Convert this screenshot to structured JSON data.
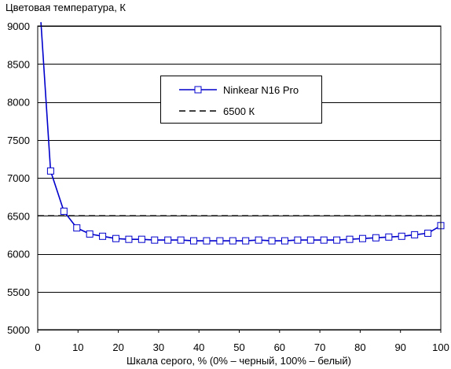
{
  "chart_data": {
    "type": "line",
    "ylabel": "Цветовая температура, К",
    "xlabel": "Шкала серого, % (0% – черный, 100% – белый)",
    "xlim": [
      0,
      100
    ],
    "ylim": [
      5000,
      9000
    ],
    "xticks": [
      0,
      10,
      20,
      30,
      40,
      50,
      60,
      70,
      80,
      90,
      100
    ],
    "yticks": [
      5000,
      5500,
      6000,
      6500,
      7000,
      7500,
      8000,
      8500,
      9000
    ],
    "grid": "horizontal",
    "legend_position": "top-center",
    "series": [
      {
        "name": "Ninkear N16 Pro",
        "color": "#0000cc",
        "marker": "open-square",
        "x": [
          3.2,
          6.5,
          9.7,
          12.9,
          16.1,
          19.4,
          22.6,
          25.8,
          29.0,
          32.3,
          35.5,
          38.7,
          41.9,
          45.2,
          48.4,
          51.6,
          54.8,
          58.1,
          61.3,
          64.5,
          67.7,
          71.0,
          74.2,
          77.4,
          80.6,
          83.9,
          87.1,
          90.3,
          93.5,
          96.8,
          100.0
        ],
        "y": [
          7090,
          6560,
          6340,
          6260,
          6230,
          6200,
          6190,
          6190,
          6180,
          6180,
          6180,
          6170,
          6170,
          6170,
          6170,
          6170,
          6180,
          6170,
          6170,
          6180,
          6180,
          6180,
          6180,
          6190,
          6200,
          6210,
          6220,
          6230,
          6250,
          6270,
          6370
        ],
        "line_start": [
          0.8,
          9050
        ]
      },
      {
        "name": "6500 К",
        "color": "#000000",
        "style": "dashed",
        "x": [
          0,
          100
        ],
        "y": [
          6500,
          6500
        ]
      }
    ]
  }
}
